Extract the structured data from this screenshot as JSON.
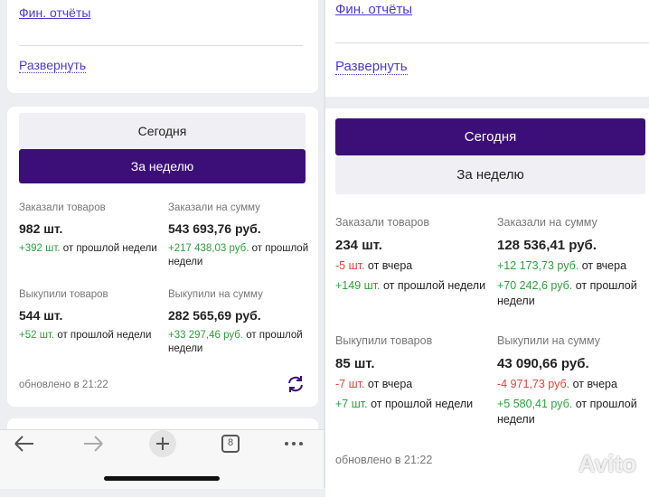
{
  "left": {
    "fin_reports": "Фин. отчёты",
    "expand": "Развернуть",
    "tabs": [
      "Сегодня",
      "За неделю"
    ],
    "stats": [
      {
        "label": "Заказали товаров",
        "value": "982 шт.",
        "changes": [
          {
            "delta": "+392 шт.",
            "text": "от прошлой недели"
          }
        ]
      },
      {
        "label": "Заказали на сумму",
        "value": "543 693,76 руб.",
        "changes": [
          {
            "delta": "+217 438,03 руб.",
            "text": "от прошлой недели"
          }
        ]
      },
      {
        "label": "Выкупили товаров",
        "value": "544 шт.",
        "changes": [
          {
            "delta": "+52 шт.",
            "text": "от прошлой недели"
          }
        ]
      },
      {
        "label": "Выкупили на сумму",
        "value": "282 565,69 руб.",
        "changes": [
          {
            "delta": "+33 297,46 руб.",
            "text": "от прошлой недели"
          }
        ]
      }
    ],
    "updated": "обновлено в 21:22",
    "tab_count": "8"
  },
  "right": {
    "fin_reports": "Фин. отчёты",
    "expand": "Развернуть",
    "tabs": [
      "Сегодня",
      "За неделю"
    ],
    "stats": [
      {
        "label": "Заказали товаров",
        "value": "234 шт.",
        "changes": [
          {
            "delta": "-5 шт.",
            "text": "от вчера"
          },
          {
            "delta": "+149 шт.",
            "text": "от прошлой недели"
          }
        ]
      },
      {
        "label": "Заказали на сумму",
        "value": "128 536,41 руб.",
        "changes": [
          {
            "delta": "+12 173,73 руб.",
            "text": "от вчера"
          },
          {
            "delta": "+70 242,6 руб.",
            "text": "от прошлой недели"
          }
        ]
      },
      {
        "label": "Выкупили товаров",
        "value": "85 шт.",
        "changes": [
          {
            "delta": "-7 шт.",
            "text": "от вчера"
          },
          {
            "delta": "+7 шт.",
            "text": "от прошлой недели"
          }
        ]
      },
      {
        "label": "Выкупили на сумму",
        "value": "43 090,66 руб.",
        "changes": [
          {
            "delta": "-4 971,73 руб.",
            "text": "от вчера"
          },
          {
            "delta": "+5 580,41 руб.",
            "text": "от прошлой недели"
          }
        ]
      }
    ],
    "updated": "обновлено в 21:22",
    "watermark": "Avito"
  }
}
